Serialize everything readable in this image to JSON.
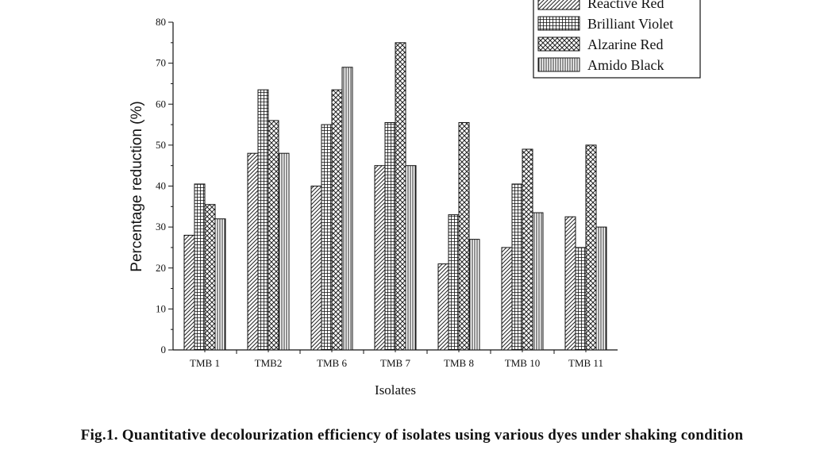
{
  "chart_data": {
    "type": "bar",
    "title": "",
    "xlabel": "Isolates",
    "ylabel": "Percentage reduction (%)",
    "ylim": [
      0,
      80
    ],
    "yticks": [
      0,
      10,
      20,
      30,
      40,
      50,
      60,
      70,
      80
    ],
    "categories": [
      "TMB 1",
      "TMB2",
      "TMB 6",
      "TMB 7",
      "TMB 8",
      "TMB 10",
      "TMB 11"
    ],
    "series": [
      {
        "name": "Reactive Red",
        "pattern": "diag-right",
        "values": [
          28,
          48,
          40,
          45,
          21,
          25,
          32.5
        ]
      },
      {
        "name": "Brilliant Violet",
        "pattern": "crosshatch-dense",
        "values": [
          40.5,
          63.5,
          55,
          55.5,
          33,
          40.5,
          25
        ]
      },
      {
        "name": "Alzarine Red",
        "pattern": "crosshatch-diag",
        "values": [
          35.5,
          56,
          63.5,
          75,
          55.5,
          49,
          50
        ]
      },
      {
        "name": "Amido Black",
        "pattern": "vertical",
        "values": [
          32,
          48,
          69,
          45,
          27,
          33.5,
          30
        ]
      }
    ],
    "legend_position": "top-right",
    "grid": false
  },
  "caption": "Fig.1. Quantitative decolourization efficiency of isolates using various dyes under shaking condition"
}
